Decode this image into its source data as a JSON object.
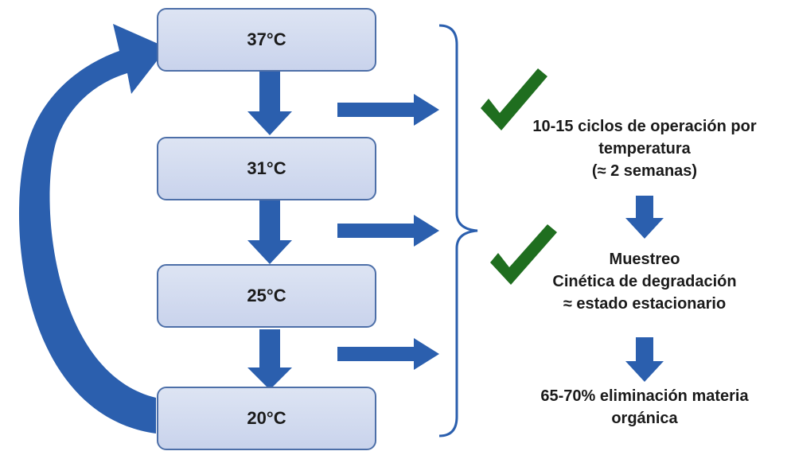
{
  "colors": {
    "arrow_blue": "#2b5fae",
    "box_fill": "#d3dbef",
    "box_border": "#4d6fa8",
    "check_green": "#1f6e1f"
  },
  "icons": [
    "check-icon",
    "arrow-icon"
  ],
  "temperature_steps": [
    {
      "label": "37°C"
    },
    {
      "label": "31°C"
    },
    {
      "label": "25°C"
    },
    {
      "label": "20°C"
    }
  ],
  "outcomes": {
    "cycles": [
      "10-15 ciclos de operación por",
      "temperatura",
      "(≈ 2 semanas)"
    ],
    "sampling": [
      "Muestreo",
      "Cinética de degradación",
      "≈ estado estacionario"
    ],
    "removal": [
      "65-70% eliminación materia",
      "orgánica"
    ]
  }
}
